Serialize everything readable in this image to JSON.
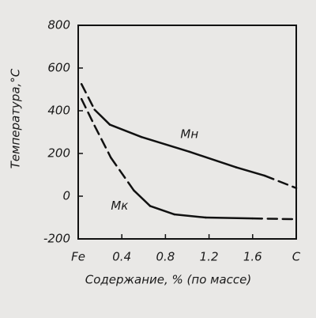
{
  "chart_data": {
    "type": "line",
    "x_label": "Содержание, % (по массе)",
    "y_label": "Температура,°C",
    "xlim": [
      0,
      2.0
    ],
    "ylim": [
      -200,
      800
    ],
    "xticks": [
      {
        "value": 0,
        "label": "Fe"
      },
      0.4,
      0.8,
      1.2,
      1.6,
      {
        "value": 2.0,
        "label": "C"
      }
    ],
    "yticks": [
      800,
      600,
      400,
      200,
      0,
      -200
    ],
    "grid": false,
    "series": [
      {
        "name": "Mн",
        "color": "#111111",
        "x": [
          0.03,
          0.15,
          0.29,
          0.58,
          1.02,
          1.45,
          1.71,
          2.0
        ],
        "values": [
          525,
          405,
          335,
          277,
          208,
          135,
          96,
          38
        ],
        "line_style": [
          "dashed",
          "solid",
          "solid",
          "solid",
          "solid",
          "solid",
          "dashed"
        ]
      },
      {
        "name": "Mк",
        "color": "#111111",
        "x": [
          0.03,
          0.15,
          0.3,
          0.51,
          0.66,
          0.88,
          1.17,
          1.6,
          2.0
        ],
        "values": [
          455,
          330,
          180,
          27,
          -46,
          -85,
          -100,
          -104,
          -108
        ],
        "line_style": [
          "dashed",
          "dashed",
          "dashed",
          "solid",
          "solid",
          "solid",
          "solid",
          "dashed"
        ]
      }
    ]
  }
}
